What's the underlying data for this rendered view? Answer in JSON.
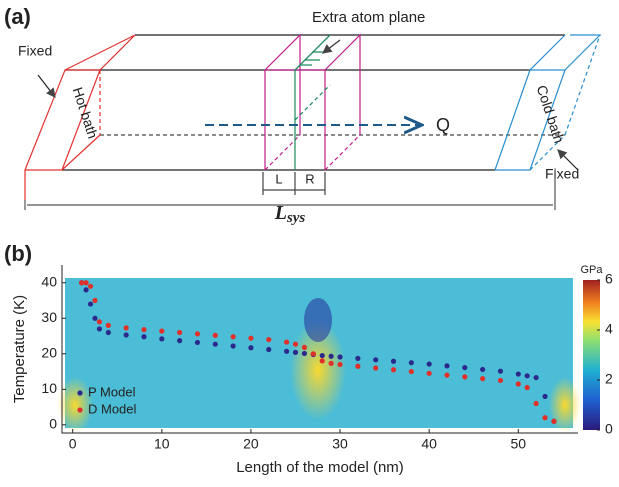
{
  "diagram": {
    "panel_label": "(a)",
    "extra_plane": "Extra atom plane",
    "fixed_left": "Fixed",
    "hot_bath": "Hot bath",
    "flux": "Q",
    "cold_bath": "Cold bath",
    "fixed_right": "Fixed",
    "left_region": "L",
    "right_region": "R",
    "length_main": "L",
    "length_sub": "sys"
  },
  "chart_data": {
    "type": "scatter",
    "panel_label": "(b)",
    "x_label": "Length of the model (nm)",
    "y_label": "Temperature (K)",
    "x": [
      1,
      1.5,
      2,
      2.5,
      3,
      4,
      6,
      8,
      10,
      12,
      14,
      16,
      18,
      20,
      22,
      24,
      25,
      26,
      27,
      28,
      29,
      30,
      32,
      34,
      36,
      38,
      40,
      42,
      44,
      46,
      48,
      50,
      51,
      52,
      53,
      54
    ],
    "series": [
      {
        "name": "P Model",
        "color": "#2a2a8c",
        "values": [
          40,
          38,
          34,
          30,
          27,
          26,
          25.3,
          24.8,
          24.2,
          23.7,
          23.2,
          22.7,
          22.2,
          21.7,
          21.2,
          20.7,
          20.4,
          20.1,
          19.8,
          19.5,
          19.3,
          19.1,
          18.7,
          18.3,
          17.9,
          17.5,
          17.1,
          16.6,
          16.1,
          15.6,
          15.1,
          14.3,
          13.8,
          13.3,
          8,
          1
        ]
      },
      {
        "name": "D Model",
        "color": "#e0302a",
        "values": [
          40,
          40,
          39,
          35,
          29,
          28,
          27.3,
          26.8,
          26.4,
          26,
          25.6,
          25.2,
          24.8,
          24.4,
          24,
          23.3,
          22.7,
          21.8,
          20,
          18,
          17.3,
          17,
          16.5,
          16,
          15.5,
          15,
          14.5,
          14,
          13.5,
          13,
          12.5,
          11.5,
          10.5,
          6,
          2,
          1
        ]
      }
    ],
    "xlim": [
      -1.2,
      56.7
    ],
    "ylim": [
      -2.3,
      45
    ],
    "xticks": [
      0,
      10,
      20,
      30,
      40,
      50
    ],
    "yticks": [
      0,
      10,
      20,
      30,
      40
    ],
    "legend": "lower-left",
    "colorbar": {
      "label": "GPa",
      "lim": [
        0,
        6
      ],
      "ticks": [
        0,
        2,
        4,
        6
      ]
    }
  }
}
